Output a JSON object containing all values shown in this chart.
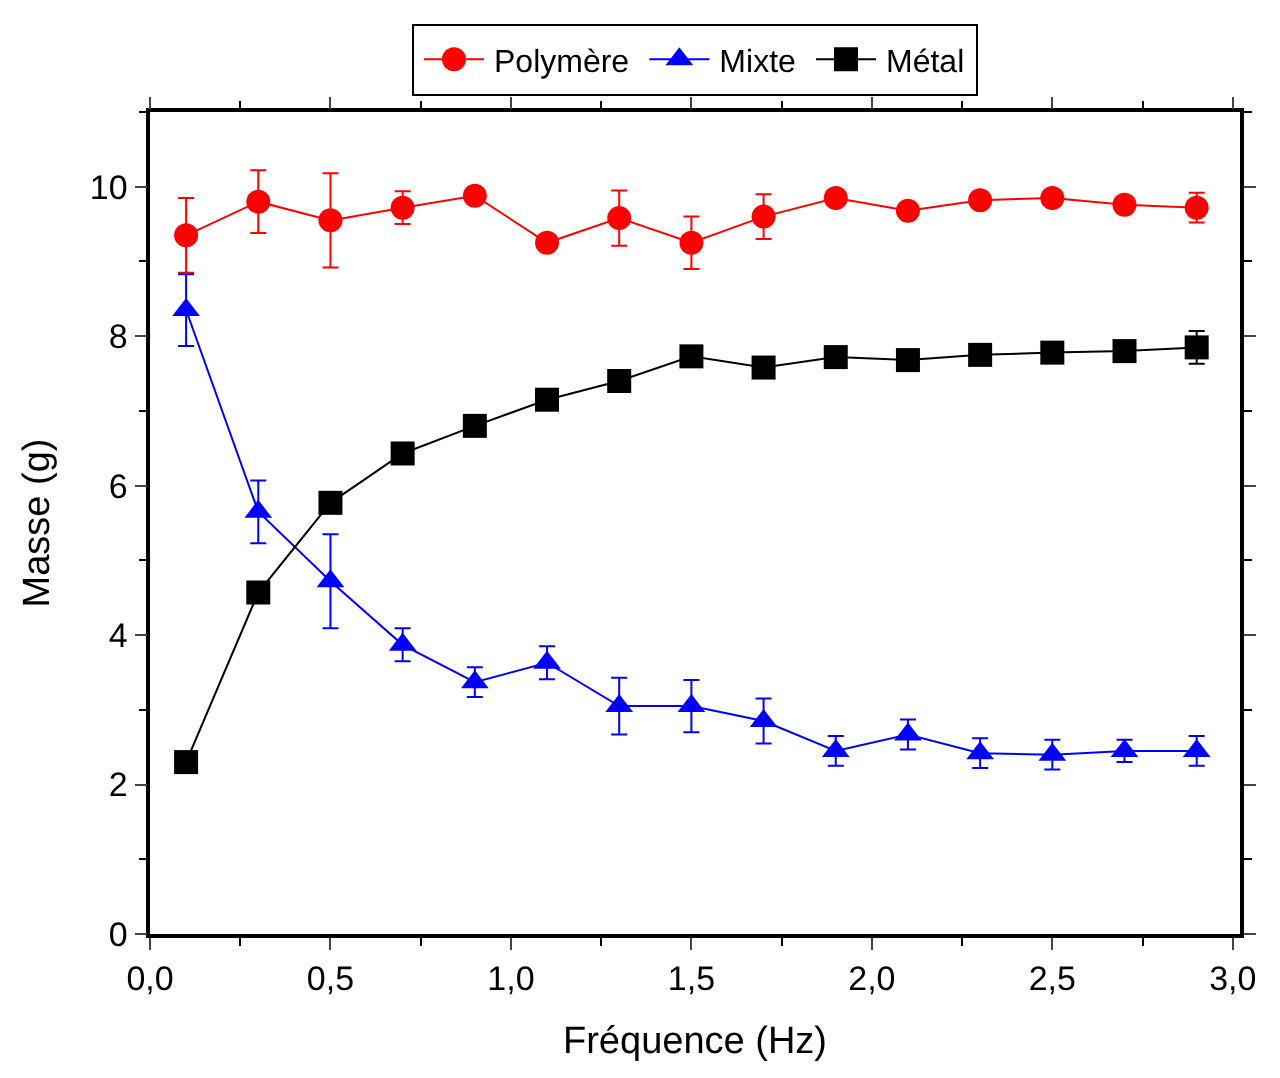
{
  "chart_data": {
    "type": "line",
    "xlabel": "Fréquence (Hz)",
    "ylabel": "Masse (g)",
    "x": [
      0.1,
      0.3,
      0.5,
      0.7,
      0.9,
      1.1,
      1.3,
      1.5,
      1.7,
      1.9,
      2.1,
      2.3,
      2.5,
      2.7,
      2.9
    ],
    "series": [
      {
        "name": "Polymère",
        "color": "#ff0000",
        "marker": "circle",
        "values": [
          9.35,
          9.8,
          9.55,
          9.72,
          9.88,
          9.25,
          9.58,
          9.25,
          9.6,
          9.85,
          9.68,
          9.82,
          9.85,
          9.76,
          9.72
        ],
        "errors": [
          0.5,
          0.42,
          0.63,
          0.22,
          null,
          null,
          0.37,
          0.35,
          0.3,
          0.1,
          null,
          0.1,
          0.1,
          0.1,
          0.2
        ]
      },
      {
        "name": "Mixte",
        "color": "#0000ff",
        "marker": "triangle",
        "values": [
          8.35,
          5.65,
          4.72,
          3.87,
          3.37,
          3.63,
          3.05,
          3.05,
          2.85,
          2.45,
          2.67,
          2.42,
          2.4,
          2.45,
          2.45
        ],
        "errors": [
          0.48,
          0.42,
          0.63,
          0.22,
          0.2,
          0.22,
          0.38,
          0.35,
          0.3,
          0.2,
          0.2,
          0.2,
          0.2,
          0.15,
          0.2
        ]
      },
      {
        "name": "Métal",
        "color": "#000000",
        "marker": "square",
        "values": [
          2.3,
          4.57,
          5.77,
          6.43,
          6.8,
          7.15,
          7.4,
          7.73,
          7.58,
          7.72,
          7.68,
          7.75,
          7.78,
          7.8,
          7.85
        ],
        "errors": [
          null,
          null,
          null,
          null,
          null,
          null,
          null,
          null,
          null,
          null,
          null,
          null,
          null,
          null,
          0.22
        ]
      }
    ],
    "xlim": [
      0,
      3.02
    ],
    "ylim": [
      0,
      11
    ],
    "xticks": [
      {
        "value": 0,
        "label": "0,0"
      },
      {
        "value": 0.5,
        "label": "0,5"
      },
      {
        "value": 1,
        "label": "1,0"
      },
      {
        "value": 1.5,
        "label": "1,5"
      },
      {
        "value": 2,
        "label": "2,0"
      },
      {
        "value": 2.5,
        "label": "2,5"
      },
      {
        "value": 3,
        "label": "3,0"
      }
    ],
    "yticks": [
      0,
      2,
      4,
      6,
      8,
      10
    ],
    "legend": "top",
    "line_style": "solid"
  }
}
